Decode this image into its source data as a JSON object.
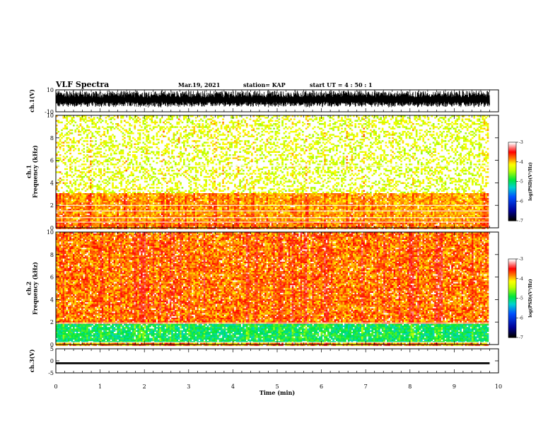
{
  "header": {
    "title": "VLF Spectra",
    "date": "Mar.19, 2021",
    "station": "station= KAP",
    "start": "start  UT =  4 : 50 : 1"
  },
  "chart_data": [
    {
      "type": "line",
      "panel": "ch1-waveform",
      "ylabel": "ch.1(V)",
      "ylim": [
        -10,
        10
      ],
      "yticks": [
        "10",
        "-10"
      ],
      "xlim": [
        0,
        10
      ],
      "x_data_end": 9.8,
      "envelope": "dense black oscillation spanning roughly -7 to +9 V"
    },
    {
      "type": "heatmap",
      "panel": "ch1-spectrogram",
      "ylabel": "ch.1\nFrequency (kHz)",
      "ylim": [
        0,
        10
      ],
      "yticks": [
        "0",
        "2",
        "4",
        "6",
        "8",
        "10"
      ],
      "xlim": [
        0,
        10
      ],
      "x_data_end": 9.8,
      "colorbar": {
        "label": "log(PSD)(V²/Hz)",
        "range": [
          -7,
          -3
        ],
        "ticks": [
          "-3",
          "-4",
          "-5",
          "-6",
          "-7"
        ]
      },
      "bands": [
        {
          "f_range_khz": [
            3.2,
            10
          ],
          "level": "-4.3",
          "note": "sparse red speckle"
        },
        {
          "f_range_khz": [
            0.6,
            3.2
          ],
          "level": "-3.9",
          "note": "red with yellow stripes"
        },
        {
          "f_range_khz": [
            0.0,
            0.6
          ],
          "level": "-3.8",
          "note": "red with white lines"
        }
      ]
    },
    {
      "type": "heatmap",
      "panel": "ch2-spectrogram",
      "ylabel": "ch.2\nFrequency (kHz)",
      "ylim": [
        0,
        10
      ],
      "yticks": [
        "0",
        "2",
        "4",
        "6",
        "8",
        "10"
      ],
      "xlim": [
        0,
        10
      ],
      "x_data_end": 9.8,
      "colorbar": {
        "label": "log(PSD)(V²/Hz)",
        "range": [
          -7,
          -3
        ],
        "ticks": [
          "-3",
          "-4",
          "-5",
          "-6",
          "-7"
        ]
      },
      "bands": [
        {
          "f_range_khz": [
            1.9,
            10
          ],
          "level": "-3.8",
          "note": "dense red with yellow vertical streaks"
        },
        {
          "f_range_khz": [
            0.2,
            1.9
          ],
          "level": "-5.0",
          "note": "green/cyan band with yellow"
        },
        {
          "f_range_khz": [
            0.0,
            0.2
          ],
          "level": "-3.9",
          "note": "red/orange"
        }
      ]
    },
    {
      "type": "line",
      "panel": "ch3-waveform",
      "ylabel": "ch.3(V)",
      "ylim": [
        -5,
        5
      ],
      "yticks": [
        "5",
        "0",
        "-5"
      ],
      "xlim": [
        0,
        10
      ],
      "xticks": [
        "0",
        "1",
        "2",
        "3",
        "4",
        "5",
        "6",
        "7",
        "8",
        "9",
        "10"
      ],
      "xlabel": "Time (min)",
      "x_data_end": 9.8,
      "envelope": "thin black band around -1 V"
    }
  ]
}
